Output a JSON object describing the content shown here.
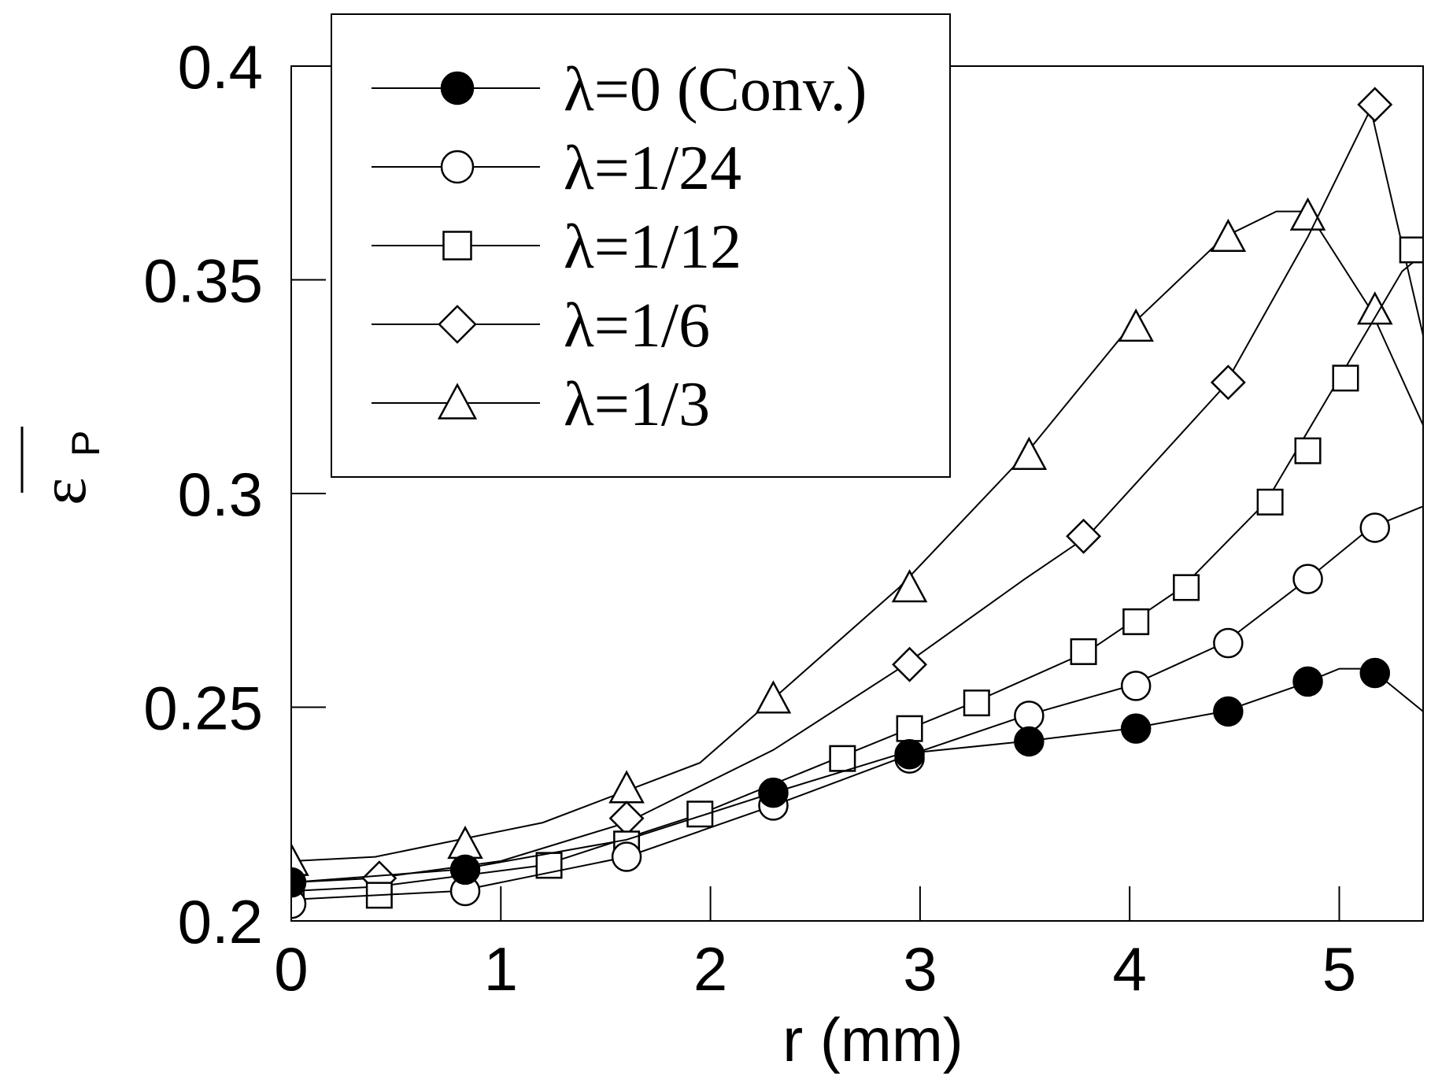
{
  "chart_data": {
    "type": "line",
    "title": "",
    "xlabel": "r (mm)",
    "ylabel_symbol": "ε",
    "ylabel_subscript": "P",
    "xlim": [
      0,
      5.4
    ],
    "ylim": [
      0.2,
      0.4
    ],
    "xticks": [
      0,
      1,
      2,
      3,
      4,
      5
    ],
    "xtick_labels": [
      "0",
      "1",
      "2",
      "3",
      "4",
      "5"
    ],
    "yticks": [
      0.2,
      0.25,
      0.3,
      0.35,
      0.4
    ],
    "ytick_labels": [
      "0.2",
      "0.25",
      "0.3",
      "0.35",
      "0.4"
    ],
    "grid": false,
    "legend_position": "top-left",
    "series": [
      {
        "name": "λ=0 (Conv.)",
        "marker": "filled-circle",
        "curve": [
          [
            0,
            0.209
          ],
          [
            0.8,
            0.212
          ],
          [
            1.6,
            0.219
          ],
          [
            2.3,
            0.23
          ],
          [
            2.9,
            0.239
          ],
          [
            3.5,
            0.242
          ],
          [
            4.0,
            0.245
          ],
          [
            4.45,
            0.249
          ],
          [
            4.8,
            0.255
          ],
          [
            5.0,
            0.259
          ],
          [
            5.15,
            0.259
          ],
          [
            5.4,
            0.249
          ]
        ],
        "markers": [
          [
            0,
            0.209
          ],
          [
            0.83,
            0.212
          ],
          [
            2.3,
            0.23
          ],
          [
            2.95,
            0.239
          ],
          [
            3.52,
            0.242
          ],
          [
            4.03,
            0.245
          ],
          [
            4.47,
            0.249
          ],
          [
            4.85,
            0.256
          ],
          [
            5.17,
            0.258
          ]
        ]
      },
      {
        "name": "λ=1/24",
        "marker": "open-circle",
        "curve": [
          [
            0,
            0.205
          ],
          [
            0.8,
            0.207
          ],
          [
            1.6,
            0.215
          ],
          [
            2.3,
            0.227
          ],
          [
            2.9,
            0.238
          ],
          [
            3.5,
            0.248
          ],
          [
            4.0,
            0.255
          ],
          [
            4.45,
            0.265
          ],
          [
            4.85,
            0.28
          ],
          [
            5.15,
            0.292
          ],
          [
            5.4,
            0.297
          ]
        ],
        "markers": [
          [
            0,
            0.204
          ],
          [
            0.83,
            0.207
          ],
          [
            1.6,
            0.215
          ],
          [
            2.3,
            0.227
          ],
          [
            2.95,
            0.238
          ],
          [
            3.52,
            0.248
          ],
          [
            4.03,
            0.255
          ],
          [
            4.47,
            0.265
          ],
          [
            4.85,
            0.28
          ],
          [
            5.17,
            0.292
          ]
        ]
      },
      {
        "name": "λ=1/12",
        "marker": "open-square",
        "curve": [
          [
            0,
            0.207
          ],
          [
            0.4,
            0.208
          ],
          [
            1.2,
            0.213
          ],
          [
            1.95,
            0.225
          ],
          [
            2.6,
            0.238
          ],
          [
            3.25,
            0.251
          ],
          [
            3.8,
            0.263
          ],
          [
            4.25,
            0.278
          ],
          [
            4.65,
            0.298
          ],
          [
            5.0,
            0.327
          ],
          [
            5.3,
            0.352
          ],
          [
            5.4,
            0.356
          ]
        ],
        "markers": [
          [
            0,
            0.206
          ],
          [
            0.42,
            0.206
          ],
          [
            1.23,
            0.213
          ],
          [
            1.6,
            0.218
          ],
          [
            1.95,
            0.225
          ],
          [
            2.63,
            0.238
          ],
          [
            2.95,
            0.245
          ],
          [
            3.27,
            0.251
          ],
          [
            3.78,
            0.263
          ],
          [
            4.03,
            0.27
          ],
          [
            4.27,
            0.278
          ],
          [
            4.67,
            0.298
          ],
          [
            4.85,
            0.31
          ],
          [
            5.03,
            0.327
          ],
          [
            5.35,
            0.357
          ]
        ]
      },
      {
        "name": "λ=1/6",
        "marker": "open-diamond",
        "curve": [
          [
            0,
            0.209
          ],
          [
            0.4,
            0.21
          ],
          [
            1.0,
            0.214
          ],
          [
            1.6,
            0.223
          ],
          [
            2.3,
            0.24
          ],
          [
            2.9,
            0.259
          ],
          [
            3.5,
            0.28
          ],
          [
            3.8,
            0.29
          ],
          [
            4.45,
            0.325
          ],
          [
            4.85,
            0.36
          ],
          [
            5.15,
            0.39
          ],
          [
            5.4,
            0.337
          ]
        ],
        "markers": [
          [
            0.42,
            0.21
          ],
          [
            1.6,
            0.224
          ],
          [
            2.95,
            0.26
          ],
          [
            3.78,
            0.29
          ],
          [
            4.47,
            0.326
          ],
          [
            5.17,
            0.391
          ]
        ]
      },
      {
        "name": "λ=1/3",
        "marker": "open-triangle",
        "curve": [
          [
            0,
            0.214
          ],
          [
            0.4,
            0.215
          ],
          [
            1.2,
            0.223
          ],
          [
            1.95,
            0.237
          ],
          [
            2.3,
            0.252
          ],
          [
            2.9,
            0.278
          ],
          [
            3.5,
            0.309
          ],
          [
            4.0,
            0.339
          ],
          [
            4.45,
            0.36
          ],
          [
            4.7,
            0.366
          ],
          [
            4.85,
            0.366
          ],
          [
            5.15,
            0.343
          ],
          [
            5.4,
            0.316
          ]
        ],
        "markers": [
          [
            0,
            0.214
          ],
          [
            0.83,
            0.218
          ],
          [
            1.6,
            0.231
          ],
          [
            2.3,
            0.252
          ],
          [
            2.95,
            0.278
          ],
          [
            3.52,
            0.309
          ],
          [
            4.03,
            0.339
          ],
          [
            4.47,
            0.36
          ],
          [
            4.85,
            0.365
          ],
          [
            5.17,
            0.343
          ]
        ]
      }
    ]
  }
}
